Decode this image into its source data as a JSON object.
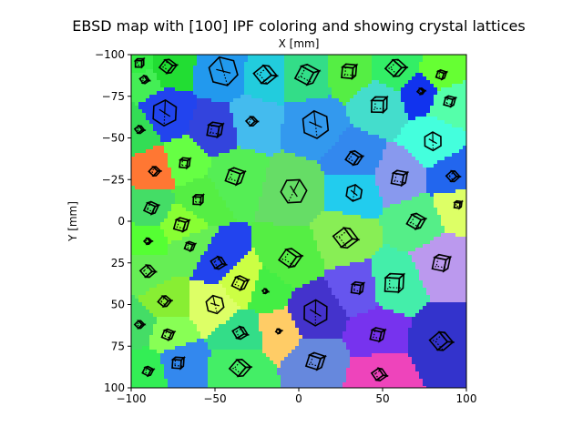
{
  "chart_data": {
    "type": "heatmap",
    "title": "EBSD map with [100] IPF coloring and showing crystal lattices",
    "xlabel": "X [mm]",
    "ylabel": "Y [mm]",
    "xlim": [
      -100,
      100
    ],
    "ylim": [
      -100,
      100
    ],
    "y_inverted": true,
    "x_axis_position": "top-and-bottom",
    "xticks": [
      -100,
      -50,
      0,
      50,
      100
    ],
    "yticks": [
      -100,
      -75,
      -50,
      -25,
      0,
      25,
      50,
      75,
      100
    ],
    "grid": false,
    "legend": "none",
    "grains": [
      {
        "x": -95,
        "y": -95,
        "color": "#33ee44",
        "size": 6,
        "lattice": "cube"
      },
      {
        "x": -78,
        "y": -93,
        "color": "#22dd33",
        "size": 9,
        "lattice": "cube"
      },
      {
        "x": -45,
        "y": -90,
        "color": "#2299ee",
        "size": 16,
        "lattice": "hex"
      },
      {
        "x": -20,
        "y": -88,
        "color": "#22ccdd",
        "size": 12,
        "lattice": "cube"
      },
      {
        "x": 5,
        "y": -88,
        "color": "#33dd88",
        "size": 13,
        "lattice": "cube"
      },
      {
        "x": 30,
        "y": -90,
        "color": "#55ee44",
        "size": 10,
        "lattice": "cube"
      },
      {
        "x": 58,
        "y": -92,
        "color": "#33ee66",
        "size": 11,
        "lattice": "cube"
      },
      {
        "x": 85,
        "y": -88,
        "color": "#66ff33",
        "size": 6,
        "lattice": "cube"
      },
      {
        "x": -92,
        "y": -85,
        "color": "#44ee55",
        "size": 5,
        "lattice": "cube"
      },
      {
        "x": -80,
        "y": -65,
        "color": "#2244ee",
        "size": 14,
        "lattice": "hex"
      },
      {
        "x": -50,
        "y": -55,
        "color": "#3344dd",
        "size": 10,
        "lattice": "cube"
      },
      {
        "x": -28,
        "y": -60,
        "color": "#44bbee",
        "size": 6,
        "lattice": "cube"
      },
      {
        "x": 10,
        "y": -58,
        "color": "#3399ee",
        "size": 15,
        "lattice": "hex"
      },
      {
        "x": 48,
        "y": -70,
        "color": "#44ddcc",
        "size": 11,
        "lattice": "cube"
      },
      {
        "x": 73,
        "y": -78,
        "color": "#1133ee",
        "size": 4,
        "lattice": "cube"
      },
      {
        "x": 90,
        "y": -72,
        "color": "#55ffaa",
        "size": 7,
        "lattice": "cube"
      },
      {
        "x": -95,
        "y": -55,
        "color": "#33dd55",
        "size": 5,
        "lattice": "cube"
      },
      {
        "x": 80,
        "y": -48,
        "color": "#44ffdd",
        "size": 10,
        "lattice": "hex"
      },
      {
        "x": -68,
        "y": -35,
        "color": "#66ff44",
        "size": 7,
        "lattice": "cube"
      },
      {
        "x": -86,
        "y": -30,
        "color": "#ff7733",
        "size": 6,
        "lattice": "cube"
      },
      {
        "x": -38,
        "y": -27,
        "color": "#55ee55",
        "size": 11,
        "lattice": "cube"
      },
      {
        "x": -3,
        "y": -18,
        "color": "#66dd66",
        "size": 14,
        "lattice": "hex"
      },
      {
        "x": 33,
        "y": -38,
        "color": "#3388ee",
        "size": 9,
        "lattice": "cube"
      },
      {
        "x": 60,
        "y": -26,
        "color": "#8899ee",
        "size": 10,
        "lattice": "cube"
      },
      {
        "x": 92,
        "y": -27,
        "color": "#2266ee",
        "size": 7,
        "lattice": "cube"
      },
      {
        "x": -88,
        "y": -8,
        "color": "#44dd66",
        "size": 8,
        "lattice": "cube"
      },
      {
        "x": -60,
        "y": -13,
        "color": "#55ee44",
        "size": 7,
        "lattice": "cube"
      },
      {
        "x": 33,
        "y": -17,
        "color": "#22ccee",
        "size": 9,
        "lattice": "hex"
      },
      {
        "x": -70,
        "y": 2,
        "color": "#88ff33",
        "size": 9,
        "lattice": "cube"
      },
      {
        "x": 28,
        "y": 10,
        "color": "#88ee55",
        "size": 13,
        "lattice": "cube"
      },
      {
        "x": 70,
        "y": 0,
        "color": "#55ee88",
        "size": 10,
        "lattice": "cube"
      },
      {
        "x": 95,
        "y": -10,
        "color": "#ddff66",
        "size": 5,
        "lattice": "cube"
      },
      {
        "x": -90,
        "y": 12,
        "color": "#55ff33",
        "size": 4,
        "lattice": "cube"
      },
      {
        "x": -65,
        "y": 15,
        "color": "#66ee55",
        "size": 6,
        "lattice": "cube"
      },
      {
        "x": -48,
        "y": 25,
        "color": "#2244ee",
        "size": 8,
        "lattice": "cube"
      },
      {
        "x": -5,
        "y": 22,
        "color": "#55ee44",
        "size": 12,
        "lattice": "cube"
      },
      {
        "x": 85,
        "y": 25,
        "color": "#bb99ee",
        "size": 11,
        "lattice": "cube"
      },
      {
        "x": -90,
        "y": 30,
        "color": "#66ee55",
        "size": 8,
        "lattice": "cube"
      },
      {
        "x": -35,
        "y": 37,
        "color": "#ccff44",
        "size": 9,
        "lattice": "cube"
      },
      {
        "x": 57,
        "y": 37,
        "color": "#44eeaa",
        "size": 13,
        "lattice": "cube"
      },
      {
        "x": -80,
        "y": 48,
        "color": "#88ee33",
        "size": 7,
        "lattice": "cube"
      },
      {
        "x": -50,
        "y": 50,
        "color": "#ddff66",
        "size": 10,
        "lattice": "hex"
      },
      {
        "x": -20,
        "y": 42,
        "color": "#44ee44",
        "size": 3,
        "lattice": "cube"
      },
      {
        "x": 10,
        "y": 55,
        "color": "#4433cc",
        "size": 14,
        "lattice": "hex"
      },
      {
        "x": 35,
        "y": 40,
        "color": "#6655ee",
        "size": 8,
        "lattice": "cube"
      },
      {
        "x": -95,
        "y": 62,
        "color": "#44dd66",
        "size": 5,
        "lattice": "cube"
      },
      {
        "x": -78,
        "y": 68,
        "color": "#88ff55",
        "size": 7,
        "lattice": "cube"
      },
      {
        "x": -35,
        "y": 67,
        "color": "#33dd88",
        "size": 8,
        "lattice": "cube"
      },
      {
        "x": -12,
        "y": 66,
        "color": "#ffcc66",
        "size": 3,
        "lattice": "cube"
      },
      {
        "x": 47,
        "y": 68,
        "color": "#7733ee",
        "size": 9,
        "lattice": "cube"
      },
      {
        "x": 85,
        "y": 72,
        "color": "#3333cc",
        "size": 12,
        "lattice": "cube"
      },
      {
        "x": -90,
        "y": 90,
        "color": "#33ee55",
        "size": 6,
        "lattice": "cube"
      },
      {
        "x": -72,
        "y": 85,
        "color": "#3388ee",
        "size": 8,
        "lattice": "cube"
      },
      {
        "x": -35,
        "y": 88,
        "color": "#44ee66",
        "size": 11,
        "lattice": "cube"
      },
      {
        "x": 10,
        "y": 84,
        "color": "#6688dd",
        "size": 11,
        "lattice": "cube"
      },
      {
        "x": 48,
        "y": 92,
        "color": "#ee44bb",
        "size": 8,
        "lattice": "cube"
      }
    ]
  }
}
